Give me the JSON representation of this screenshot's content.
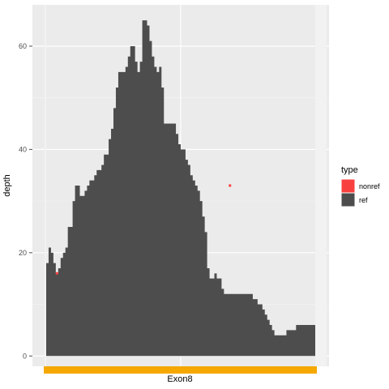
{
  "chart_data": {
    "type": "area",
    "title": "",
    "xlabel": "",
    "ylabel": "depth",
    "ylim": [
      -2,
      68
    ],
    "yticks": [
      0,
      20,
      40,
      60
    ],
    "region_label": "Exon8",
    "region_color": "#f5a800",
    "grid": "on",
    "background": "#ebebeb",
    "legend_placement": "right",
    "legend_title": "type",
    "series": [
      {
        "name": "ref",
        "color": "#4d4d4d",
        "x": [
          0,
          1,
          2,
          3,
          4,
          5,
          6,
          7,
          8,
          9,
          10,
          11,
          12,
          13,
          14,
          15,
          16,
          17,
          18,
          19,
          20,
          21,
          22,
          23,
          24,
          25,
          26,
          27,
          28,
          29,
          30,
          31,
          32,
          33,
          34,
          35,
          36,
          37,
          38,
          39,
          40,
          41,
          42,
          43,
          44,
          45,
          46,
          47,
          48,
          49,
          50,
          51,
          52,
          53,
          54,
          55,
          56,
          57,
          58,
          59,
          60,
          61,
          62,
          63,
          64,
          65,
          66,
          67,
          68,
          69,
          70,
          71,
          72,
          73,
          74,
          75,
          76,
          77,
          78,
          79,
          80,
          81,
          82,
          83,
          84,
          85,
          86,
          87,
          88,
          89,
          90,
          91,
          92,
          93,
          94,
          95,
          96,
          97,
          98,
          99,
          100,
          101,
          102,
          103,
          104,
          105,
          106,
          107,
          108,
          109,
          110,
          111
        ],
        "values": [
          18,
          21,
          20,
          18,
          16,
          17,
          19,
          20,
          21,
          25,
          25,
          30,
          33,
          33,
          31,
          31,
          32,
          33,
          34,
          34,
          35,
          36,
          36,
          37,
          39,
          39,
          42,
          44,
          48,
          52,
          55,
          55,
          55,
          56,
          58,
          60,
          60,
          57,
          55,
          57,
          65,
          65,
          64,
          61,
          58,
          56,
          55,
          56,
          52,
          45,
          45,
          45,
          45,
          45,
          43,
          41,
          40,
          40,
          38,
          37,
          35,
          34,
          33,
          32,
          30,
          27,
          24,
          17,
          15,
          15,
          16,
          15,
          15,
          13,
          12,
          12,
          12,
          12,
          12,
          12,
          12,
          12,
          12,
          12,
          12,
          12,
          11,
          11,
          10,
          10,
          9,
          8,
          7,
          6,
          5,
          4,
          4,
          4,
          4,
          4,
          5,
          5,
          5,
          5,
          6,
          6,
          6,
          6,
          6,
          6,
          6,
          6
        ]
      },
      {
        "name": "nonref",
        "color": "#f8413f",
        "points": [
          [
            4,
            16
          ],
          [
            76,
            33
          ]
        ]
      }
    ]
  }
}
